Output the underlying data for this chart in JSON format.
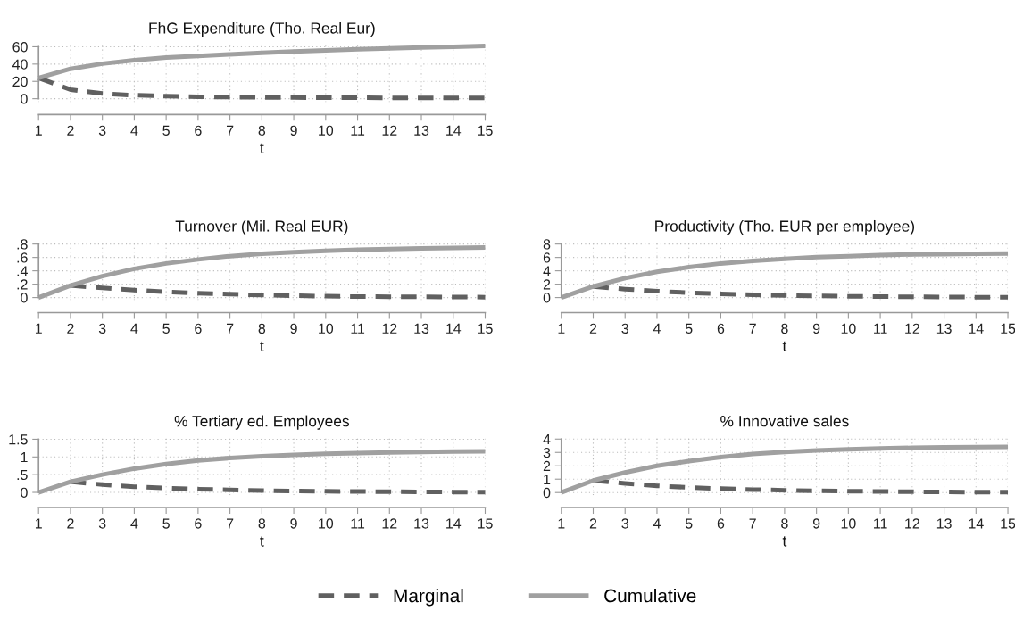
{
  "chart_data": [
    {
      "type": "line",
      "title": "FhG Expenditure (Tho. Real Eur)",
      "xlabel": "t",
      "x": [
        1,
        2,
        3,
        4,
        5,
        6,
        7,
        8,
        9,
        10,
        11,
        12,
        13,
        14,
        15
      ],
      "xlim": [
        1,
        15
      ],
      "xticks": [
        1,
        2,
        3,
        4,
        5,
        6,
        7,
        8,
        9,
        10,
        11,
        12,
        13,
        14,
        15
      ],
      "ylim": [
        -4,
        64
      ],
      "yticks": [
        0,
        20,
        40,
        60
      ],
      "grid": true,
      "legend": false,
      "series": [
        {
          "color": "#606060",
          "line_style": "dashed",
          "values": [
            24,
            10.5,
            6,
            4,
            3,
            2.2,
            1.8,
            1.5,
            1.3,
            1.2,
            1.1,
            1,
            0.9,
            0.8,
            0.8
          ]
        },
        {
          "color": "#a0a0a0",
          "line_style": "solid",
          "values": [
            24,
            34.5,
            40.5,
            44.5,
            47.5,
            49.5,
            51.3,
            53,
            54.5,
            55.8,
            57,
            58.1,
            59.1,
            60,
            61
          ]
        }
      ]
    },
    {
      "type": "line",
      "title": "Turnover (Mil. Real EUR)",
      "xlabel": "t",
      "x": [
        1,
        2,
        3,
        4,
        5,
        6,
        7,
        8,
        9,
        10,
        11,
        12,
        13,
        14,
        15
      ],
      "xlim": [
        1,
        15
      ],
      "xticks": [
        1,
        2,
        3,
        4,
        5,
        6,
        7,
        8,
        9,
        10,
        11,
        12,
        13,
        14,
        15
      ],
      "ylim": [
        -0.04,
        0.84
      ],
      "yticks": [
        0,
        {
          "value": 0.2,
          "label": ".2"
        },
        {
          "value": 0.4,
          "label": ".4"
        },
        {
          "value": 0.6,
          "label": ".6"
        },
        {
          "value": 0.8,
          "label": ".8"
        }
      ],
      "grid": true,
      "legend": false,
      "series": [
        {
          "color": "#606060",
          "line_style": "dashed",
          "values": [
            null,
            0.18,
            0.145,
            0.11,
            0.085,
            0.065,
            0.05,
            0.037,
            0.028,
            0.02,
            0.015,
            0.012,
            0.01,
            0.008,
            0.006
          ]
        },
        {
          "color": "#a0a0a0",
          "line_style": "solid",
          "values": [
            0,
            0.18,
            0.32,
            0.43,
            0.51,
            0.57,
            0.62,
            0.655,
            0.68,
            0.7,
            0.715,
            0.725,
            0.735,
            0.742,
            0.748
          ]
        }
      ]
    },
    {
      "type": "line",
      "title": "Productivity (Tho. EUR per employee)",
      "xlabel": "t",
      "x": [
        1,
        2,
        3,
        4,
        5,
        6,
        7,
        8,
        9,
        10,
        11,
        12,
        13,
        14,
        15
      ],
      "xlim": [
        1,
        15
      ],
      "xticks": [
        1,
        2,
        3,
        4,
        5,
        6,
        7,
        8,
        9,
        10,
        11,
        12,
        13,
        14,
        15
      ],
      "ylim": [
        -0.4,
        8.4
      ],
      "yticks": [
        0,
        2,
        4,
        6,
        8
      ],
      "grid": true,
      "legend": false,
      "series": [
        {
          "color": "#606060",
          "line_style": "dashed",
          "values": [
            null,
            1.65,
            1.25,
            0.95,
            0.72,
            0.55,
            0.42,
            0.32,
            0.25,
            0.19,
            0.14,
            0.11,
            0.08,
            0.06,
            0.05
          ]
        },
        {
          "color": "#a0a0a0",
          "line_style": "solid",
          "values": [
            0,
            1.65,
            2.9,
            3.85,
            4.55,
            5.1,
            5.5,
            5.8,
            6.05,
            6.2,
            6.35,
            6.45,
            6.5,
            6.55,
            6.6
          ]
        }
      ]
    },
    {
      "type": "line",
      "title": "% Tertiary ed. Employees",
      "xlabel": "t",
      "x": [
        1,
        2,
        3,
        4,
        5,
        6,
        7,
        8,
        9,
        10,
        11,
        12,
        13,
        14,
        15
      ],
      "xlim": [
        1,
        15
      ],
      "xticks": [
        1,
        2,
        3,
        4,
        5,
        6,
        7,
        8,
        9,
        10,
        11,
        12,
        13,
        14,
        15
      ],
      "ylim": [
        -0.08,
        1.58
      ],
      "yticks": [
        0,
        {
          "value": 0.5,
          "label": ".5"
        },
        1,
        1.5
      ],
      "grid": true,
      "legend": false,
      "series": [
        {
          "color": "#606060",
          "line_style": "dashed",
          "values": [
            null,
            0.3,
            0.22,
            0.16,
            0.12,
            0.09,
            0.07,
            0.05,
            0.04,
            0.03,
            0.025,
            0.02,
            0.015,
            0.01,
            0.01
          ]
        },
        {
          "color": "#a0a0a0",
          "line_style": "solid",
          "values": [
            0,
            0.3,
            0.5,
            0.67,
            0.8,
            0.9,
            0.97,
            1.02,
            1.06,
            1.09,
            1.11,
            1.13,
            1.14,
            1.15,
            1.16
          ]
        }
      ]
    },
    {
      "type": "line",
      "title": "% Innovative sales",
      "xlabel": "t",
      "x": [
        1,
        2,
        3,
        4,
        5,
        6,
        7,
        8,
        9,
        10,
        11,
        12,
        13,
        14,
        15
      ],
      "xlim": [
        1,
        15
      ],
      "xticks": [
        1,
        2,
        3,
        4,
        5,
        6,
        7,
        8,
        9,
        10,
        11,
        12,
        13,
        14,
        15
      ],
      "ylim": [
        -0.2,
        4.2
      ],
      "yticks": [
        0,
        1,
        2,
        3,
        4
      ],
      "grid": true,
      "legend": "bottom",
      "series": [
        {
          "name": "Marginal",
          "color": "#606060",
          "line_style": "dashed",
          "values": [
            null,
            0.9,
            0.68,
            0.5,
            0.38,
            0.29,
            0.22,
            0.17,
            0.13,
            0.1,
            0.08,
            0.06,
            0.045,
            0.035,
            0.03
          ]
        },
        {
          "name": "Cumulative",
          "color": "#a0a0a0",
          "line_style": "solid",
          "values": [
            0,
            0.9,
            1.5,
            2.0,
            2.35,
            2.65,
            2.88,
            3.03,
            3.15,
            3.23,
            3.3,
            3.35,
            3.38,
            3.4,
            3.42
          ]
        }
      ]
    }
  ]
}
